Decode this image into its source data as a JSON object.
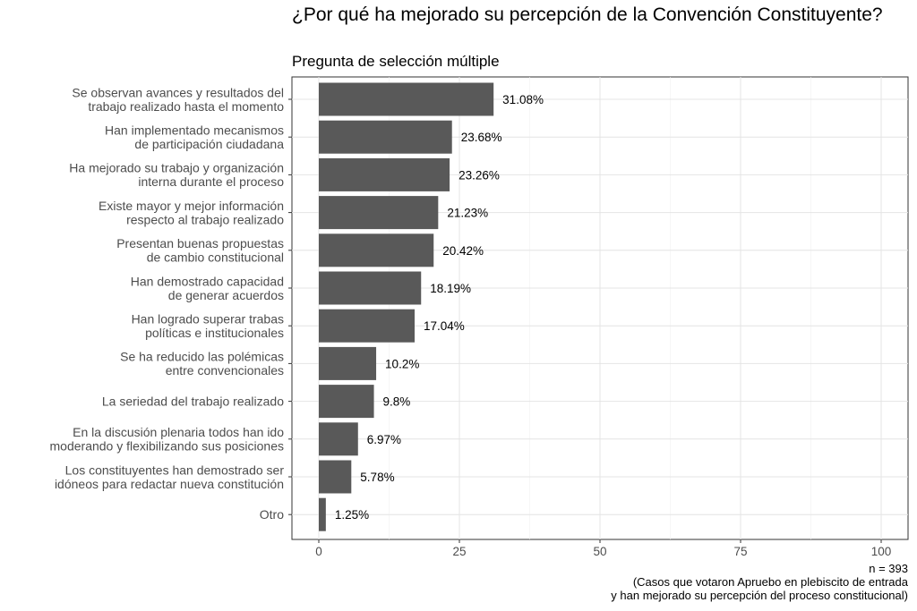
{
  "title": "¿Por qué ha mejorado su percepción de la Convención Constituyente?",
  "subtitle": "Pregunta de selección múltiple",
  "caption": {
    "line1": "n = 393",
    "line2": "(Casos que votaron Apruebo en plebiscito de entrada",
    "line3": "y han mejorado su percepción del proceso constitucional)"
  },
  "chart_data": {
    "type": "bar",
    "orientation": "horizontal",
    "categories": [
      [
        "Se observan avances y resultados del",
        "trabajo realizado hasta el momento"
      ],
      [
        "Han implementado mecanismos",
        "de participación ciudadana"
      ],
      [
        "Ha mejorado su trabajo y organización",
        "interna durante el proceso"
      ],
      [
        "Existe mayor y mejor información",
        "respecto al trabajo realizado"
      ],
      [
        "Presentan buenas propuestas",
        "de cambio constitucional"
      ],
      [
        "Han demostrado capacidad",
        "de generar acuerdos"
      ],
      [
        "Han logrado superar trabas",
        "políticas e institucionales"
      ],
      [
        "Se ha reducido las polémicas",
        "entre convencionales"
      ],
      [
        "La seriedad del trabajo realizado"
      ],
      [
        "En la discusión plenaria todos han ido",
        "moderando y flexibilizando sus posiciones"
      ],
      [
        "Los constituyentes han demostrado ser",
        "idóneos para redactar nueva constitución"
      ],
      [
        "Otro"
      ]
    ],
    "values": [
      31.08,
      23.68,
      23.26,
      21.23,
      20.42,
      18.19,
      17.04,
      10.2,
      9.8,
      6.97,
      5.78,
      1.25
    ],
    "value_labels": [
      "31.08%",
      "23.68%",
      "23.26%",
      "21.23%",
      "20.42%",
      "18.19%",
      "17.04%",
      "10.2%",
      "9.8%",
      "6.97%",
      "5.78%",
      "1.25%"
    ],
    "xticks": [
      0,
      25,
      50,
      75,
      100
    ],
    "xlim": [
      0,
      100
    ],
    "bar_color": "#595959",
    "grid": true
  }
}
